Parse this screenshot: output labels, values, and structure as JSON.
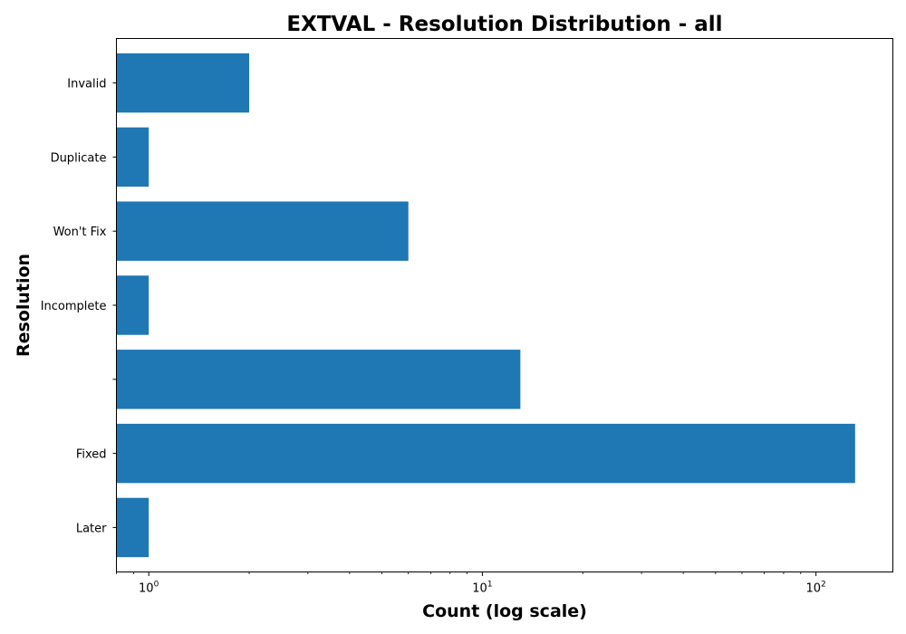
{
  "chart_data": {
    "type": "bar",
    "orientation": "horizontal",
    "title": "EXTVAL - Resolution Distribution - all",
    "xlabel": "Count (log scale)",
    "ylabel": "Resolution",
    "x_scale": "log",
    "xlim": [
      0.8,
      170
    ],
    "categories": [
      "Later",
      "Fixed",
      "",
      "Incomplete",
      "Won't Fix",
      "Duplicate",
      "Invalid"
    ],
    "values": [
      1,
      131,
      13,
      1,
      6,
      1,
      2
    ],
    "x_ticks": [
      {
        "value": 1,
        "base": "10",
        "exp": "0"
      },
      {
        "value": 10,
        "base": "10",
        "exp": "1"
      },
      {
        "value": 100,
        "base": "10",
        "exp": "2"
      }
    ],
    "bar_color": "#1f77b4",
    "grid": false,
    "legend": "none"
  }
}
